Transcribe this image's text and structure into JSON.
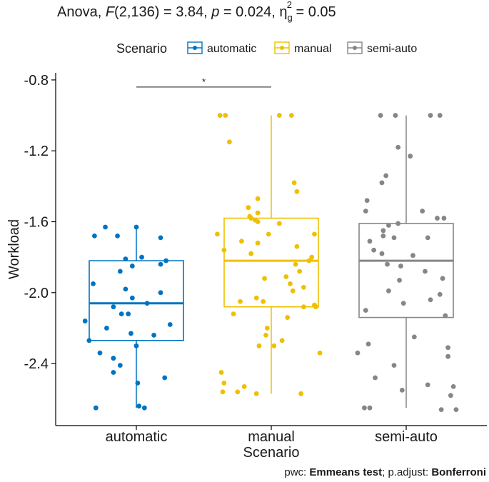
{
  "header": {
    "stat_prefix": "Anova, ",
    "stat_F": "F",
    "stat_df": "(2,136) = 3.84, ",
    "stat_p": "p",
    "stat_p_value": " = 0.024, ",
    "stat_eta": "η",
    "stat_eta_sub": "g",
    "stat_eta_sup": "2",
    "stat_eta_value": " = 0.05"
  },
  "footer": {
    "pwc_prefix": "pwc: ",
    "pwc_method": "Emmeans test",
    "padjust_prefix": "; p.adjust: ",
    "padjust_method": "Bonferroni"
  },
  "chart_data": {
    "type": "boxplot",
    "title": "Anova, F(2,136) = 3.84, p = 0.024, ηg² = 0.05",
    "xlabel": "Scenario",
    "ylabel": "Workload",
    "ylim": [
      -2.75,
      -0.76
    ],
    "yticks": [
      -0.8,
      -1.2,
      -1.6,
      -2.0,
      -2.4
    ],
    "ytick_labels": [
      "-0.8",
      "-1.2",
      "-1.6",
      "-2.0",
      "-2.4"
    ],
    "categories": [
      "automatic",
      "manual",
      "semi-auto"
    ],
    "legend": {
      "title": "Scenario",
      "position": "top",
      "entries": [
        "automatic",
        "manual",
        "semi-auto"
      ]
    },
    "colors": {
      "automatic": "#0073c2",
      "manual": "#efc000",
      "semi-auto": "#868686"
    },
    "boxes": [
      {
        "name": "automatic",
        "min": -2.65,
        "q1": -2.27,
        "median": -2.06,
        "q3": -1.82,
        "max": -1.63
      },
      {
        "name": "manual",
        "min": -2.57,
        "q1": -2.08,
        "median": -1.82,
        "q3": -1.58,
        "max": -1.0
      },
      {
        "name": "semi-auto",
        "min": -2.65,
        "q1": -2.14,
        "median": -1.82,
        "q3": -1.61,
        "max": -1.0
      }
    ],
    "points": {
      "automatic": [
        [
          -0.23,
          -1.63
        ],
        [
          0.0,
          -1.63
        ],
        [
          -0.31,
          -1.68
        ],
        [
          -0.14,
          -1.68
        ],
        [
          0.18,
          -1.69
        ],
        [
          0.04,
          -1.8
        ],
        [
          -0.08,
          -1.81
        ],
        [
          0.22,
          -1.82
        ],
        [
          0.18,
          -1.84
        ],
        [
          -0.03,
          -1.85
        ],
        [
          -0.12,
          -1.88
        ],
        [
          -0.32,
          -1.95
        ],
        [
          -0.08,
          -1.98
        ],
        [
          0.18,
          -2.0
        ],
        [
          -0.03,
          -2.03
        ],
        [
          0.08,
          -2.06
        ],
        [
          -0.17,
          -2.08
        ],
        [
          -0.11,
          -2.12
        ],
        [
          -0.06,
          -2.12
        ],
        [
          -0.38,
          -2.16
        ],
        [
          0.25,
          -2.18
        ],
        [
          -0.22,
          -2.2
        ],
        [
          -0.04,
          -2.23
        ],
        [
          0.13,
          -2.24
        ],
        [
          -0.35,
          -2.27
        ],
        [
          0.0,
          -2.3
        ],
        [
          -0.27,
          -2.34
        ],
        [
          -0.17,
          -2.37
        ],
        [
          -0.12,
          -2.41
        ],
        [
          -0.17,
          -2.45
        ],
        [
          0.21,
          -2.48
        ],
        [
          0.01,
          -2.51
        ],
        [
          -0.3,
          -2.65
        ],
        [
          0.02,
          -2.64
        ],
        [
          0.06,
          -2.65
        ]
      ],
      "manual": [
        [
          -0.38,
          -1.0
        ],
        [
          -0.34,
          -1.0
        ],
        [
          0.06,
          -1.0
        ],
        [
          0.15,
          -1.0
        ],
        [
          -0.31,
          -1.15
        ],
        [
          0.17,
          -1.38
        ],
        [
          0.19,
          -1.43
        ],
        [
          -0.1,
          -1.47
        ],
        [
          -0.17,
          -1.52
        ],
        [
          -0.1,
          -1.55
        ],
        [
          -0.16,
          -1.57
        ],
        [
          -0.15,
          -1.58
        ],
        [
          -0.12,
          -1.59
        ],
        [
          -0.1,
          -1.6
        ],
        [
          0.06,
          -1.61
        ],
        [
          -0.4,
          -1.67
        ],
        [
          -0.02,
          -1.67
        ],
        [
          0.32,
          -1.67
        ],
        [
          -0.22,
          -1.71
        ],
        [
          -0.1,
          -1.72
        ],
        [
          0.19,
          -1.74
        ],
        [
          -0.35,
          -1.76
        ],
        [
          -0.15,
          -1.78
        ],
        [
          0.3,
          -1.8
        ],
        [
          0.28,
          -1.82
        ],
        [
          0.18,
          -1.84
        ],
        [
          0.21,
          -1.88
        ],
        [
          0.11,
          -1.91
        ],
        [
          -0.05,
          -1.92
        ],
        [
          0.14,
          -1.95
        ],
        [
          0.24,
          -1.97
        ],
        [
          0.16,
          -1.99
        ],
        [
          -0.11,
          -2.03
        ],
        [
          -0.23,
          -2.05
        ],
        [
          -0.06,
          -2.05
        ],
        [
          0.32,
          -2.07
        ],
        [
          0.24,
          -2.08
        ],
        [
          0.33,
          -2.08
        ],
        [
          -0.28,
          -2.12
        ],
        [
          0.12,
          -2.14
        ],
        [
          -0.03,
          -2.2
        ],
        [
          -0.04,
          -2.24
        ],
        [
          0.08,
          -2.27
        ],
        [
          0.02,
          -2.3
        ],
        [
          -0.09,
          -2.3
        ],
        [
          0.36,
          -2.34
        ],
        [
          -0.37,
          -2.45
        ],
        [
          -0.35,
          -2.51
        ],
        [
          -0.2,
          -2.53
        ],
        [
          -0.36,
          -2.56
        ],
        [
          -0.25,
          -2.56
        ],
        [
          -0.11,
          -2.57
        ],
        [
          0.22,
          -2.57
        ]
      ],
      "semi-auto": [
        [
          -0.19,
          -1.0
        ],
        [
          -0.08,
          -1.0
        ],
        [
          0.18,
          -1.0
        ],
        [
          0.25,
          -1.0
        ],
        [
          -0.06,
          -1.18
        ],
        [
          0.03,
          -1.23
        ],
        [
          -0.15,
          -1.34
        ],
        [
          -0.18,
          -1.38
        ],
        [
          -0.29,
          -1.48
        ],
        [
          -0.3,
          -1.54
        ],
        [
          0.12,
          -1.54
        ],
        [
          0.28,
          -1.58
        ],
        [
          0.23,
          -1.58
        ],
        [
          -0.06,
          -1.61
        ],
        [
          -0.13,
          -1.62
        ],
        [
          -0.17,
          -1.65
        ],
        [
          -0.17,
          -1.68
        ],
        [
          -0.09,
          -1.69
        ],
        [
          0.16,
          -1.69
        ],
        [
          -0.27,
          -1.71
        ],
        [
          -0.24,
          -1.76
        ],
        [
          -0.18,
          -1.78
        ],
        [
          0.05,
          -1.79
        ],
        [
          -0.14,
          -1.84
        ],
        [
          -0.04,
          -1.85
        ],
        [
          0.14,
          -1.88
        ],
        [
          0.27,
          -1.92
        ],
        [
          -0.05,
          -1.93
        ],
        [
          -0.13,
          -1.99
        ],
        [
          0.25,
          -2.01
        ],
        [
          0.18,
          -2.04
        ],
        [
          -0.02,
          -2.06
        ],
        [
          -0.3,
          -2.1
        ],
        [
          0.29,
          -2.13
        ],
        [
          0.06,
          -2.25
        ],
        [
          -0.28,
          -2.29
        ],
        [
          0.31,
          -2.31
        ],
        [
          -0.36,
          -2.34
        ],
        [
          0.31,
          -2.36
        ],
        [
          -0.09,
          -2.41
        ],
        [
          -0.23,
          -2.48
        ],
        [
          0.16,
          -2.52
        ],
        [
          -0.03,
          -2.55
        ],
        [
          0.35,
          -2.53
        ],
        [
          0.33,
          -2.58
        ],
        [
          -0.31,
          -2.65
        ],
        [
          -0.27,
          -2.65
        ],
        [
          0.37,
          -2.66
        ],
        [
          0.26,
          -2.66
        ]
      ]
    },
    "significance": {
      "from": "automatic",
      "to": "manual",
      "y": -0.84,
      "label": "*"
    }
  }
}
